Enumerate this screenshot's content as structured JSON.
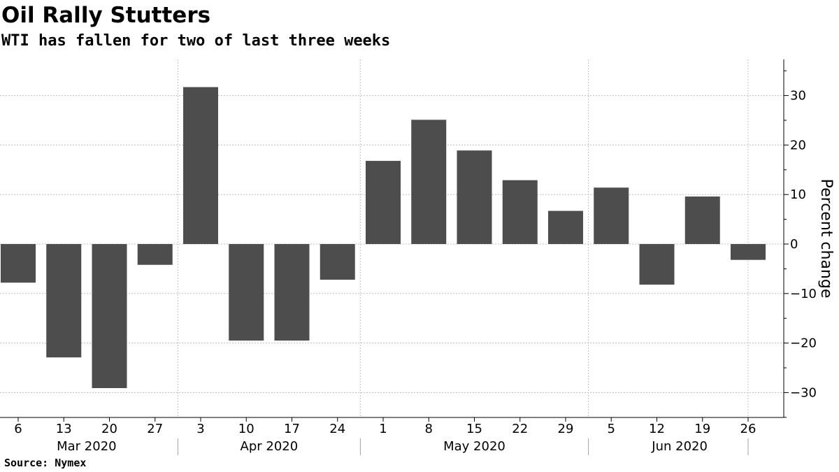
{
  "header": {
    "title": "Oil Rally Stutters",
    "subtitle": "WTI has fallen for two of last three weeks"
  },
  "footer": {
    "source": "Source: Nymex"
  },
  "colors": {
    "bar": "#4d4d4d",
    "grid": "#bfbfbf",
    "axis": "#000000"
  },
  "chart_data": {
    "type": "bar",
    "categories": [
      "6",
      "13",
      "20",
      "27",
      "3",
      "10",
      "17",
      "24",
      "1",
      "8",
      "15",
      "22",
      "29",
      "5",
      "12",
      "19",
      "26"
    ],
    "values": [
      -7.8,
      -22.9,
      -29.1,
      -4.2,
      31.7,
      -19.5,
      -19.5,
      -7.2,
      16.8,
      25.1,
      18.9,
      12.9,
      6.7,
      11.4,
      -8.2,
      9.6,
      -3.2
    ],
    "months": [
      {
        "label": "Mar 2020",
        "start": 0,
        "end": 3
      },
      {
        "label": "Apr 2020",
        "start": 4,
        "end": 7
      },
      {
        "label": "May 2020",
        "start": 8,
        "end": 12
      },
      {
        "label": "Jun 2020",
        "start": 13,
        "end": 16
      }
    ],
    "title": "Oil Rally Stutters",
    "subtitle": "WTI has fallen for two of last three weeks",
    "ylabel": "Percent change",
    "ylim": [
      -35,
      37
    ],
    "yticks": [
      -30,
      -20,
      -10,
      0,
      10,
      20,
      30
    ],
    "ytick_labels": [
      "−30",
      "−20",
      "−10",
      "0",
      "10",
      "20",
      "30"
    ],
    "y_axis_side": "right",
    "grid": true
  }
}
